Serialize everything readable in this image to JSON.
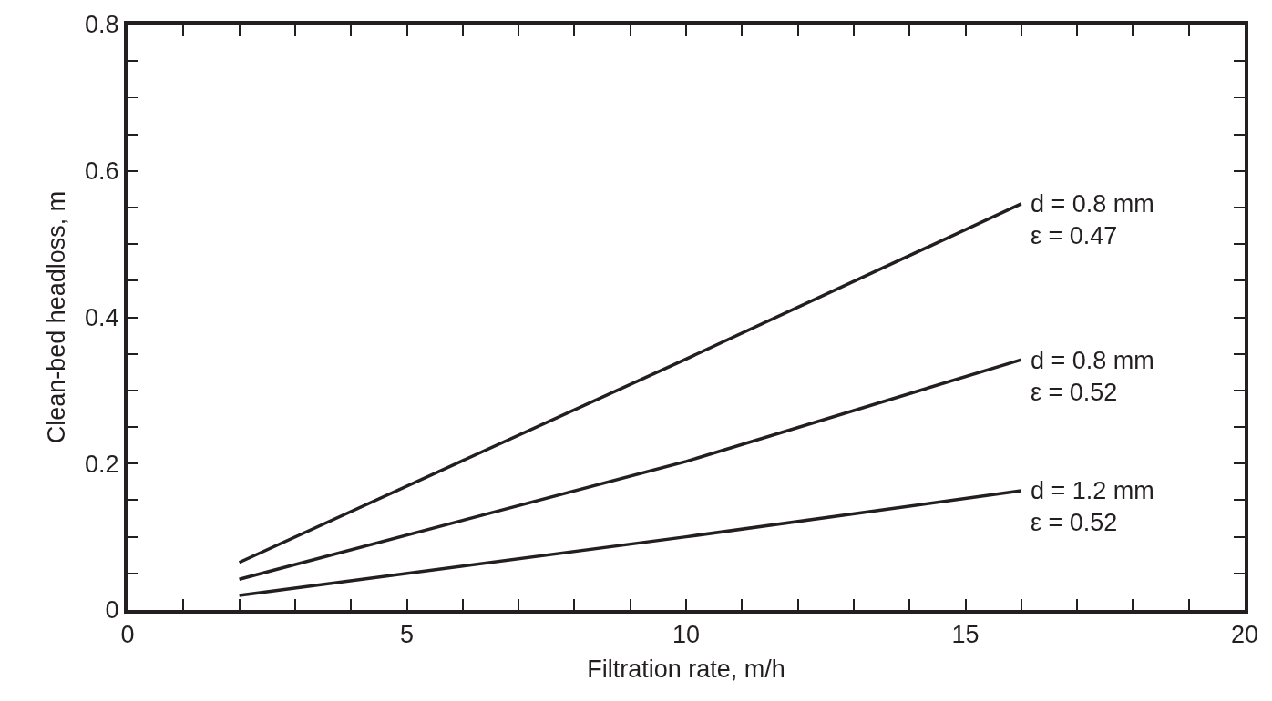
{
  "chart_data": {
    "type": "line",
    "xlabel": "Filtration rate, m/h",
    "ylabel": "Clean-bed headloss, m",
    "xlim": [
      0,
      20
    ],
    "xticks": [
      0,
      5,
      10,
      15,
      20
    ],
    "ylim": [
      0,
      0.8
    ],
    "yticks": [
      {
        "value": 0,
        "label": "0"
      },
      0.2,
      0.4,
      0.6,
      0.8
    ],
    "legend": false,
    "marker": "none",
    "line_style": "solid",
    "series": [
      {
        "name": "d = 0.8 mm\nε = 0.47",
        "color": "#231f20",
        "x": [
          2,
          10,
          16
        ],
        "values": [
          0.065,
          0.343,
          0.555
        ]
      },
      {
        "name": "d = 0.8 mm\nε = 0.52",
        "color": "#231f20",
        "x": [
          2,
          10,
          16
        ],
        "values": [
          0.042,
          0.203,
          0.342
        ]
      },
      {
        "name": "d = 1.2 mm\nε = 0.52",
        "color": "#231f20",
        "x": [
          2,
          10,
          16
        ],
        "values": [
          0.02,
          0.1,
          0.163
        ]
      }
    ]
  }
}
